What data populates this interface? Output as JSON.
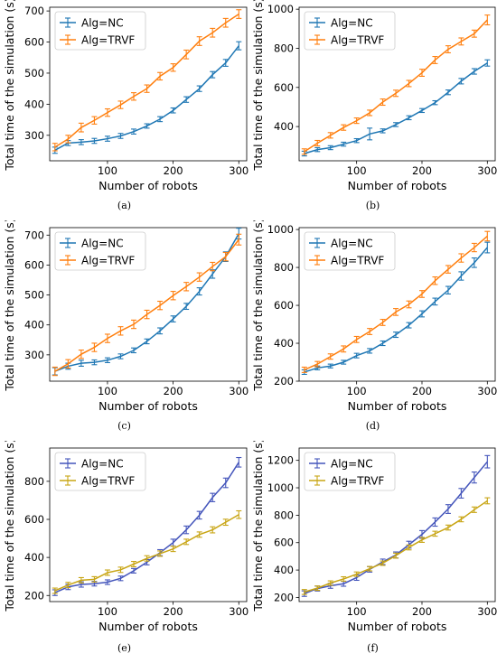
{
  "colors": {
    "nc": "#1f77b4",
    "trvf": "#ff7f0e",
    "nc_alt": "#4455bb",
    "trvf_alt": "#c8a514"
  },
  "chart_data": [
    {
      "type": "line",
      "caption": "(a)",
      "xlabel": "Number of robots",
      "ylabel": "Total time of the simulation (s)",
      "xlim": [
        12,
        312
      ],
      "ylim": [
        218,
        712
      ],
      "xticks": [
        100,
        200,
        300
      ],
      "yticks": [
        300,
        400,
        500,
        600,
        700
      ],
      "legend": "top-left",
      "x": [
        20,
        40,
        60,
        80,
        100,
        120,
        140,
        160,
        180,
        200,
        220,
        240,
        260,
        280,
        300
      ],
      "series": [
        {
          "name": "Alg=NC",
          "color": "nc",
          "values": [
            252,
            275,
            278,
            282,
            289,
            298,
            312,
            330,
            352,
            380,
            415,
            450,
            495,
            533,
            588
          ],
          "errors": [
            10,
            8,
            8,
            8,
            8,
            8,
            8,
            7,
            8,
            8,
            9,
            9,
            10,
            11,
            13
          ]
        },
        {
          "name": "Alg=TRVF",
          "color": "trvf",
          "values": [
            262,
            288,
            325,
            348,
            373,
            398,
            425,
            450,
            490,
            518,
            560,
            603,
            630,
            662,
            690
          ],
          "errors": [
            12,
            12,
            14,
            12,
            12,
            12,
            12,
            12,
            12,
            12,
            14,
            14,
            14,
            14,
            14
          ]
        }
      ]
    },
    {
      "type": "line",
      "caption": "(b)",
      "xlabel": "Number of robots",
      "ylabel": "Total time of the simulation (s)",
      "xlim": [
        12,
        312
      ],
      "ylim": [
        225,
        1010
      ],
      "xticks": [
        100,
        200,
        300
      ],
      "yticks": [
        400,
        600,
        800,
        1000
      ],
      "legend": "top-left",
      "x": [
        20,
        40,
        60,
        80,
        100,
        120,
        140,
        160,
        180,
        200,
        220,
        240,
        260,
        280,
        300
      ],
      "series": [
        {
          "name": "Alg=NC",
          "color": "nc",
          "values": [
            262,
            282,
            292,
            310,
            328,
            362,
            378,
            410,
            445,
            482,
            522,
            575,
            632,
            682,
            725
          ],
          "errors": [
            12,
            10,
            10,
            10,
            10,
            30,
            10,
            10,
            10,
            10,
            10,
            12,
            14,
            14,
            16
          ]
        },
        {
          "name": "Alg=TRVF",
          "color": "trvf",
          "values": [
            272,
            315,
            355,
            395,
            430,
            470,
            525,
            570,
            620,
            675,
            740,
            795,
            835,
            875,
            945
          ],
          "errors": [
            14,
            14,
            14,
            14,
            14,
            14,
            16,
            16,
            16,
            18,
            18,
            18,
            18,
            18,
            25
          ]
        }
      ]
    },
    {
      "type": "line",
      "caption": "(c)",
      "xlabel": "Number of robots",
      "ylabel": "Total time of the simulation (s)",
      "xlim": [
        12,
        312
      ],
      "ylim": [
        212,
        725
      ],
      "xticks": [
        100,
        200,
        300
      ],
      "yticks": [
        300,
        400,
        500,
        600,
        700
      ],
      "legend": "top-left",
      "x": [
        20,
        40,
        60,
        80,
        100,
        120,
        140,
        160,
        180,
        200,
        220,
        240,
        260,
        280,
        300
      ],
      "series": [
        {
          "name": "Alg=NC",
          "color": "nc",
          "values": [
            245,
            262,
            272,
            275,
            282,
            295,
            315,
            345,
            380,
            420,
            462,
            512,
            570,
            628,
            705
          ],
          "errors": [
            12,
            10,
            10,
            8,
            8,
            8,
            8,
            8,
            10,
            10,
            10,
            12,
            14,
            16,
            18
          ]
        },
        {
          "name": "Alg=TRVF",
          "color": "trvf",
          "values": [
            245,
            270,
            302,
            325,
            355,
            380,
            402,
            435,
            465,
            498,
            528,
            560,
            595,
            628,
            685
          ],
          "errors": [
            14,
            14,
            14,
            14,
            14,
            14,
            14,
            14,
            14,
            14,
            14,
            14,
            14,
            14,
            18
          ]
        }
      ]
    },
    {
      "type": "line",
      "caption": "(d)",
      "xlabel": "Number of robots",
      "ylabel": "Total time of the simulation (s)",
      "xlim": [
        12,
        312
      ],
      "ylim": [
        200,
        1010
      ],
      "xticks": [
        100,
        200,
        300
      ],
      "yticks": [
        200,
        400,
        600,
        800,
        1000
      ],
      "legend": "top-left",
      "x": [
        20,
        40,
        60,
        80,
        100,
        120,
        140,
        160,
        180,
        200,
        220,
        240,
        260,
        280,
        300
      ],
      "series": [
        {
          "name": "Alg=NC",
          "color": "nc",
          "values": [
            248,
            270,
            280,
            300,
            335,
            360,
            400,
            445,
            495,
            555,
            620,
            680,
            755,
            825,
            905
          ],
          "errors": [
            12,
            10,
            10,
            10,
            12,
            12,
            12,
            14,
            14,
            16,
            18,
            20,
            22,
            25,
            28
          ]
        },
        {
          "name": "Alg=TRVF",
          "color": "trvf",
          "values": [
            260,
            290,
            330,
            370,
            420,
            462,
            510,
            565,
            605,
            660,
            730,
            790,
            850,
            905,
            965
          ],
          "errors": [
            14,
            14,
            14,
            16,
            16,
            16,
            16,
            18,
            18,
            18,
            20,
            20,
            22,
            22,
            25
          ]
        }
      ]
    },
    {
      "type": "line",
      "caption": "(e)",
      "xlabel": "Number of robots",
      "ylabel": "Total time of the simulation (s)",
      "xlim": [
        12,
        312
      ],
      "ylim": [
        168,
        975
      ],
      "xticks": [
        100,
        200,
        300
      ],
      "yticks": [
        200,
        400,
        600,
        800
      ],
      "legend": "top-left",
      "x": [
        20,
        40,
        60,
        80,
        100,
        120,
        140,
        160,
        180,
        200,
        220,
        240,
        260,
        280,
        300
      ],
      "series": [
        {
          "name": "Alg=NC",
          "color": "nc_alt",
          "values": [
            215,
            245,
            258,
            262,
            270,
            290,
            330,
            375,
            425,
            478,
            545,
            622,
            715,
            792,
            900
          ],
          "errors": [
            15,
            14,
            14,
            12,
            12,
            12,
            12,
            14,
            16,
            18,
            20,
            20,
            22,
            25,
            25
          ]
        },
        {
          "name": "Alg=TRVF",
          "color": "trvf_alt",
          "values": [
            225,
            255,
            280,
            285,
            320,
            335,
            365,
            395,
            420,
            445,
            482,
            520,
            545,
            585,
            625
          ],
          "errors": [
            14,
            14,
            14,
            14,
            14,
            14,
            14,
            14,
            14,
            14,
            14,
            14,
            16,
            16,
            20
          ]
        }
      ]
    },
    {
      "type": "line",
      "caption": "(f)",
      "xlabel": "Number of robots",
      "ylabel": "Total time of the simulation (s)",
      "xlim": [
        12,
        312
      ],
      "ylim": [
        170,
        1290
      ],
      "xticks": [
        100,
        200,
        300
      ],
      "yticks": [
        200,
        400,
        600,
        800,
        1000,
        1200
      ],
      "legend": "top-left",
      "x": [
        20,
        40,
        60,
        80,
        100,
        120,
        140,
        160,
        180,
        200,
        220,
        240,
        260,
        280,
        300
      ],
      "series": [
        {
          "name": "Alg=NC",
          "color": "nc_alt",
          "values": [
            228,
            265,
            285,
            300,
            345,
            405,
            460,
            510,
            585,
            660,
            750,
            845,
            960,
            1075,
            1190
          ],
          "errors": [
            20,
            18,
            18,
            18,
            20,
            20,
            20,
            22,
            25,
            28,
            30,
            32,
            35,
            40,
            45
          ]
        },
        {
          "name": "Alg=TRVF",
          "color": "trvf_alt",
          "values": [
            240,
            268,
            305,
            335,
            370,
            410,
            450,
            505,
            565,
            620,
            665,
            710,
            770,
            840,
            905
          ],
          "errors": [
            18,
            16,
            16,
            16,
            16,
            16,
            16,
            18,
            18,
            18,
            18,
            18,
            18,
            20,
            22
          ]
        }
      ]
    }
  ]
}
